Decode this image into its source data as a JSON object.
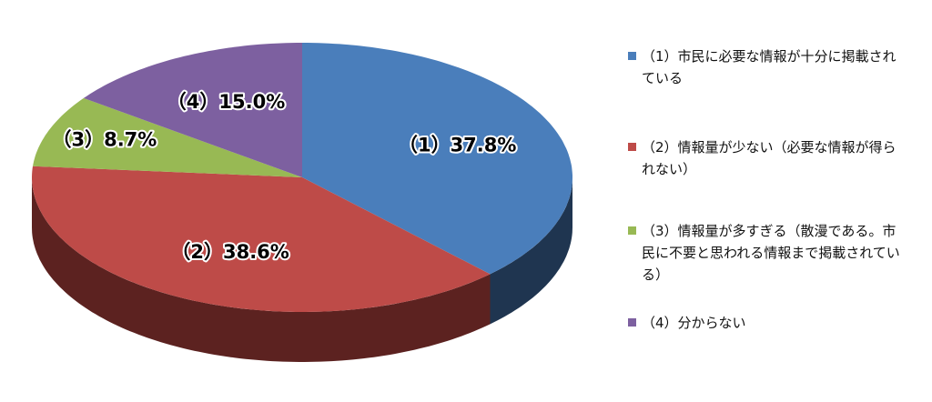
{
  "chart_data": {
    "type": "pie3d",
    "categories": [
      "（1）市民に必要な情報が十分に掲載されている",
      "（2）情報量が少ない（必要な情報が得られない）",
      "（3）情報量が多すぎる（散漫である。市民に不要と思われる情報まで掲載されている）",
      "（4）分からない"
    ],
    "values": [
      37.8,
      38.6,
      8.7,
      15.0
    ],
    "value_labels": [
      "（1）37.8%",
      "（2）38.6%",
      "（3）8.7%",
      "（4）15.0%"
    ],
    "colors": [
      "#4a7ebb",
      "#be4b48",
      "#98b954",
      "#7d60a0"
    ],
    "side_colors": [
      "#1f3550",
      "#5c2220",
      "#4b5d28",
      "#3d2d52"
    ],
    "legend": "right"
  }
}
